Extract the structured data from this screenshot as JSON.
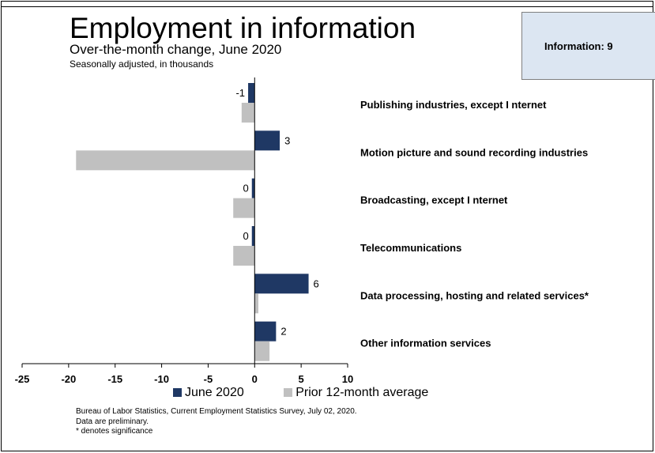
{
  "header": {
    "title": "Employment in information",
    "subtitle": "Over-the-month change, June 2020",
    "subtitle2": "Seasonally adjusted, in thousands"
  },
  "info_box": {
    "text": "Information: 9"
  },
  "legend": [
    {
      "label": "June 2020",
      "color": "#1f3864"
    },
    {
      "label": "Prior 12-month average",
      "color": "#c0c0c0"
    }
  ],
  "footnotes": [
    "Bureau of Labor Statistics, Current Employment Statistics Survey, July 02, 2020.",
    "Data are preliminary.",
    "* denotes significance"
  ],
  "chart_data": {
    "type": "bar",
    "orientation": "horizontal",
    "categories": [
      "Publishing industries, except I nternet",
      "Motion picture and sound recording industries",
      "Broadcasting, except I nternet",
      "Telecommunications",
      "Data processing, hosting and related services*",
      "Other information services"
    ],
    "series": [
      {
        "name": "June 2020",
        "color": "#1f3864",
        "values": [
          -0.7,
          2.7,
          -0.3,
          -0.3,
          5.8,
          2.3
        ],
        "data_labels": [
          "-1",
          "3",
          "0",
          "0",
          "6",
          "2"
        ]
      },
      {
        "name": "Prior 12-month average",
        "color": "#c0c0c0",
        "values": [
          -1.4,
          -19.2,
          -2.3,
          -2.3,
          0.4,
          1.6
        ]
      }
    ],
    "xlim": [
      -25,
      10
    ],
    "xticks": [
      "-25",
      "-20",
      "-15",
      "-10",
      "-5",
      "0",
      "5",
      "10"
    ],
    "grid": false,
    "legend_position": "bottom"
  }
}
